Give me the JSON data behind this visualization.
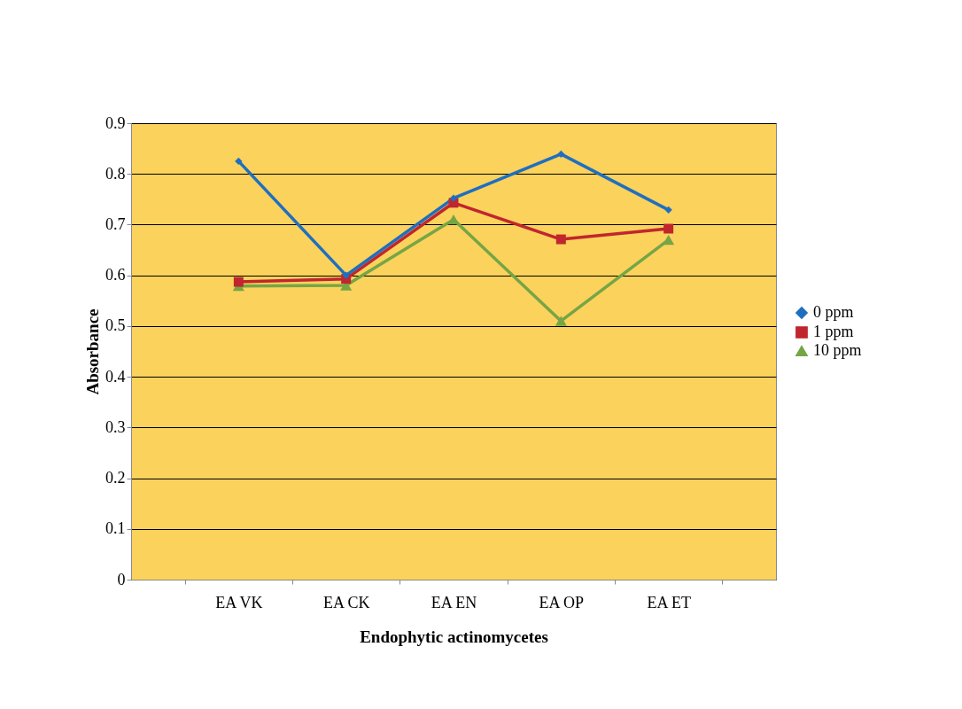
{
  "chart_data": {
    "type": "line",
    "xlabel": "Endophytic actinomycetes",
    "ylabel": "Absorbance",
    "categories": [
      "EA VK",
      "EA CK",
      "EA EN",
      "EA OP",
      "EA ET"
    ],
    "series": [
      {
        "name": "0 ppm",
        "color": "#1f6fc0",
        "marker": "diamond",
        "values": [
          0.825,
          0.6,
          0.752,
          0.839,
          0.729
        ]
      },
      {
        "name": "1 ppm",
        "color": "#c0262d",
        "marker": "square",
        "values": [
          0.587,
          0.593,
          0.743,
          0.671,
          0.692
        ]
      },
      {
        "name": "10 ppm",
        "color": "#76a545",
        "marker": "triangle",
        "values": [
          0.579,
          0.58,
          0.71,
          0.51,
          0.67
        ]
      }
    ],
    "ylim": [
      0,
      0.9
    ],
    "yticks": [
      0,
      0.1,
      0.2,
      0.3,
      0.4,
      0.5,
      0.6,
      0.7,
      0.8,
      0.9
    ],
    "grid": "y",
    "legend": "right",
    "line_style": "solid"
  }
}
